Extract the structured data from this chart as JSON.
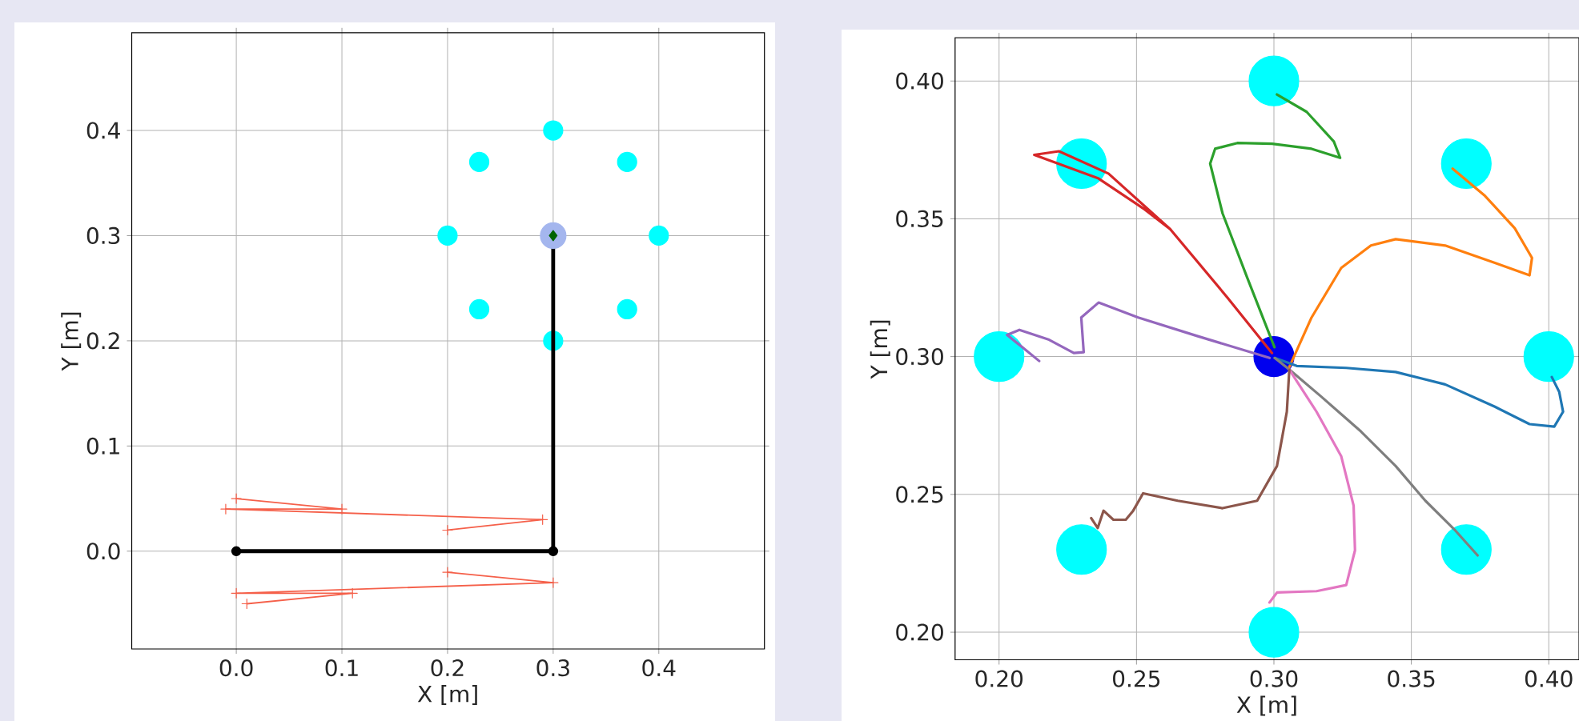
{
  "chart_data": [
    {
      "type": "line",
      "xlabel": "X [m]",
      "ylabel": "Y [m]",
      "grid": true,
      "xlim": [
        -0.099,
        0.5
      ],
      "ylim": [
        -0.093,
        0.493
      ],
      "xticks": [
        {
          "value": 0,
          "label": "0.0"
        },
        0.1,
        0.2,
        0.3,
        0.4
      ],
      "yticks": [
        {
          "value": 0,
          "label": "0.0"
        },
        0.1,
        0.2,
        0.3,
        0.4
      ],
      "series": [
        {
          "type": "scatter",
          "color": "#00ffff",
          "marker": "circle",
          "x": [
            0.3,
            0.37,
            0.4,
            0.37,
            0.3,
            0.23,
            0.2,
            0.23
          ],
          "values": [
            0.4,
            0.37,
            0.3,
            0.23,
            0.2,
            0.23,
            0.3,
            0.37
          ]
        },
        {
          "type": "line",
          "color": "#000000",
          "marker": "none",
          "x": [
            0,
            0.3,
            0.3
          ],
          "values": [
            0,
            0,
            0.3
          ]
        },
        {
          "type": "scatter",
          "color": "#000000",
          "marker": "circle",
          "x": [
            0,
            0.3
          ],
          "values": [
            0,
            0
          ]
        },
        {
          "type": "scatter",
          "color": "#a4b6ee",
          "marker": "circle",
          "x": [
            0.3
          ],
          "values": [
            0.3
          ]
        },
        {
          "type": "scatter",
          "color": "#006400",
          "marker": "diamond",
          "x": [
            0.3
          ],
          "values": [
            0.3
          ]
        },
        {
          "type": "line",
          "color": "#f5604a",
          "marker": "cross",
          "x": [
            0,
            0.1,
            -0.01,
            0.29,
            0.2
          ],
          "values": [
            0.05,
            0.04,
            0.04,
            0.03,
            0.02
          ]
        },
        {
          "type": "line",
          "color": "#f5604a",
          "marker": "cross",
          "x": [
            0.2,
            0.3,
            0,
            0.11,
            0.01
          ],
          "values": [
            -0.02,
            -0.03,
            -0.04,
            -0.04,
            -0.05
          ]
        }
      ]
    },
    {
      "type": "line",
      "xlabel": "X [m]",
      "ylabel": "Y [m]",
      "grid": true,
      "xlim": [
        0.184,
        0.411
      ],
      "ylim": [
        0.19,
        0.4157
      ],
      "xticks": [
        {
          "value": 0.2,
          "label": "0.20"
        },
        0.25,
        {
          "value": 0.3,
          "label": "0.30"
        },
        0.35,
        {
          "value": 0.4,
          "label": "0.40"
        }
      ],
      "yticks": [
        {
          "value": 0.2,
          "label": "0.20"
        },
        0.25,
        {
          "value": 0.3,
          "label": "0.30"
        },
        0.35,
        {
          "value": 0.4,
          "label": "0.40"
        }
      ],
      "series": [
        {
          "type": "scatter",
          "color": "#00ffff",
          "marker": "circle",
          "x": [
            0.3,
            0.37,
            0.4,
            0.37,
            0.3,
            0.23,
            0.2,
            0.23
          ],
          "values": [
            0.4,
            0.37,
            0.3,
            0.23,
            0.2,
            0.23,
            0.3,
            0.37
          ]
        },
        {
          "type": "scatter",
          "color": "#0000ee",
          "marker": "circle",
          "x": [
            0.3
          ],
          "values": [
            0.3
          ]
        },
        {
          "type": "line",
          "color": "#2ca02c",
          "marker": "none",
          "x": [
            0.3002,
            0.2903,
            0.2813,
            0.2768,
            0.2786,
            0.2867,
            0.2993,
            0.3137,
            0.3241,
            0.3218,
            0.3119,
            0.3011
          ],
          "values": [
            0.3034,
            0.3286,
            0.352,
            0.37,
            0.3754,
            0.3775,
            0.3772,
            0.3754,
            0.3721,
            0.378,
            0.3888,
            0.3951
          ]
        },
        {
          "type": "line",
          "color": "#d62728",
          "marker": "none",
          "x": [
            0.2993,
            0.2831,
            0.2623,
            0.2524,
            0.2362,
            0.2128,
            0.2218,
            0.2398,
            0.2623
          ],
          "values": [
            0.3013,
            0.3214,
            0.3462,
            0.3538,
            0.3646,
            0.3732,
            0.3745,
            0.3664,
            0.3462
          ]
        },
        {
          "type": "line",
          "color": "#ff7f0e",
          "marker": "none",
          "x": [
            0.3056,
            0.3137,
            0.3245,
            0.3353,
            0.3443,
            0.3623,
            0.3804,
            0.393,
            0.3939,
            0.3876,
            0.3768,
            0.365
          ],
          "values": [
            0.2962,
            0.3142,
            0.3322,
            0.3403,
            0.3426,
            0.3403,
            0.334,
            0.3295,
            0.3358,
            0.3466,
            0.3583,
            0.3682
          ]
        },
        {
          "type": "line",
          "color": "#1f77b4",
          "marker": "none",
          "x": [
            0.3003,
            0.3083,
            0.3263,
            0.3443,
            0.3623,
            0.3804,
            0.393,
            0.402,
            0.4052,
            0.4038,
            0.4011
          ],
          "values": [
            0.2995,
            0.2966,
            0.2959,
            0.2944,
            0.2899,
            0.2818,
            0.2755,
            0.2746,
            0.28,
            0.2872,
            0.2926
          ]
        },
        {
          "type": "line",
          "color": "#7f7f7f",
          "marker": "none",
          "x": [
            0.3003,
            0.3056,
            0.3173,
            0.3317,
            0.3443,
            0.3551,
            0.366,
            0.3741
          ],
          "values": [
            0.2995,
            0.2953,
            0.2854,
            0.2728,
            0.2603,
            0.2477,
            0.2369,
            0.2279
          ]
        },
        {
          "type": "line",
          "color": "#e377c2",
          "marker": "none",
          "x": [
            0.3056,
            0.3155,
            0.3245,
            0.329,
            0.3295,
            0.3263,
            0.3155,
            0.3011,
            0.2984
          ],
          "values": [
            0.2953,
            0.28,
            0.2638,
            0.2459,
            0.2297,
            0.2171,
            0.2149,
            0.2144,
            0.2108
          ]
        },
        {
          "type": "line",
          "color": "#8c564b",
          "marker": "none",
          "x": [
            0.3056,
            0.3047,
            0.3011,
            0.2939,
            0.2813,
            0.265,
            0.2524,
            0.2488,
            0.2461,
            0.2416,
            0.238,
            0.2359,
            0.2335
          ],
          "values": [
            0.2953,
            0.28,
            0.2603,
            0.2477,
            0.245,
            0.2477,
            0.2504,
            0.2441,
            0.2408,
            0.2408,
            0.2441,
            0.2378,
            0.2414
          ]
        },
        {
          "type": "line",
          "color": "#9467bd",
          "marker": "none",
          "x": [
            0.2984,
            0.2723,
            0.2506,
            0.2362,
            0.2299,
            0.2308,
            0.2272,
            0.2182,
            0.2074,
            0.2029,
            0.2146
          ],
          "values": [
            0.2995,
            0.3074,
            0.3142,
            0.3196,
            0.3142,
            0.3016,
            0.3013,
            0.3061,
            0.3097,
            0.3079,
            0.2984
          ]
        }
      ]
    }
  ]
}
